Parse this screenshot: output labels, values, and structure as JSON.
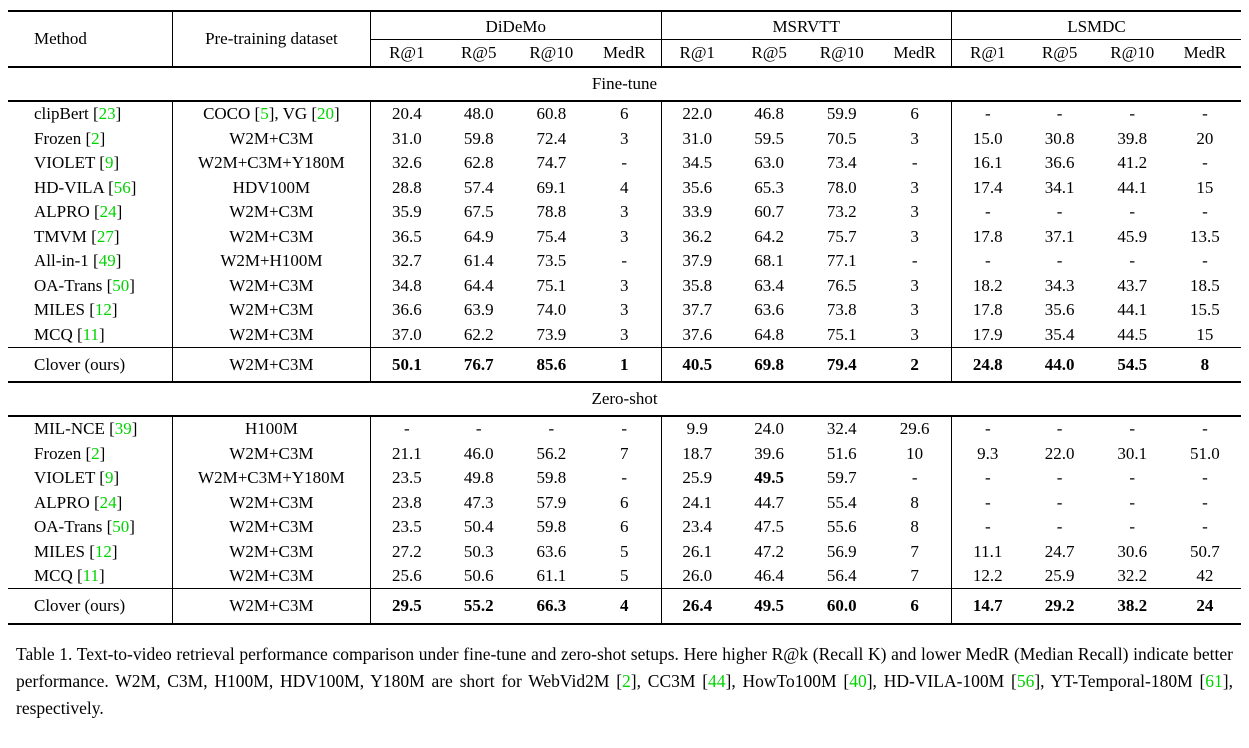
{
  "accent": {
    "citation_green": "#00d400",
    "text": "#000000",
    "background": "#ffffff"
  },
  "table": {
    "header": {
      "method": "Method",
      "pretraining": "Pre-training dataset",
      "groups": [
        {
          "label": "DiDeMo",
          "cols": [
            "R@1",
            "R@5",
            "R@10",
            "MedR"
          ]
        },
        {
          "label": "MSRVTT",
          "cols": [
            "R@1",
            "R@5",
            "R@10",
            "MedR"
          ]
        },
        {
          "label": "LSMDC",
          "cols": [
            "R@1",
            "R@5",
            "R@10",
            "MedR"
          ]
        }
      ]
    },
    "sections": [
      {
        "label": "Fine-tune",
        "rows": [
          {
            "method": [
              "clipBert [",
              {
                "g": "23"
              },
              "]"
            ],
            "dataset": [
              "COCO [",
              {
                "g": "5"
              },
              "], VG [",
              {
                "g": "20"
              },
              "]"
            ],
            "values": [
              "20.4",
              "48.0",
              "60.8",
              "6",
              "22.0",
              "46.8",
              "59.9",
              "6",
              "-",
              "-",
              "-",
              "-"
            ]
          },
          {
            "method": [
              "Frozen [",
              {
                "g": "2"
              },
              "]"
            ],
            "dataset": [
              "W2M+C3M"
            ],
            "values": [
              "31.0",
              "59.8",
              "72.4",
              "3",
              "31.0",
              "59.5",
              "70.5",
              "3",
              "15.0",
              "30.8",
              "39.8",
              "20"
            ]
          },
          {
            "method": [
              "VIOLET [",
              {
                "g": "9"
              },
              "]"
            ],
            "dataset": [
              "W2M+C3M+Y180M"
            ],
            "values": [
              "32.6",
              "62.8",
              "74.7",
              "-",
              "34.5",
              "63.0",
              "73.4",
              "-",
              "16.1",
              "36.6",
              "41.2",
              "-"
            ]
          },
          {
            "method": [
              "HD-VILA [",
              {
                "g": "56"
              },
              "]"
            ],
            "dataset": [
              "HDV100M"
            ],
            "values": [
              "28.8",
              "57.4",
              "69.1",
              "4",
              "35.6",
              "65.3",
              "78.0",
              "3",
              "17.4",
              "34.1",
              "44.1",
              "15"
            ]
          },
          {
            "method": [
              "ALPRO [",
              {
                "g": "24"
              },
              "]"
            ],
            "dataset": [
              "W2M+C3M"
            ],
            "values": [
              "35.9",
              "67.5",
              "78.8",
              "3",
              "33.9",
              "60.7",
              "73.2",
              "3",
              "-",
              "-",
              "-",
              "-"
            ]
          },
          {
            "method": [
              "TMVM [",
              {
                "g": "27"
              },
              "]"
            ],
            "dataset": [
              "W2M+C3M"
            ],
            "values": [
              "36.5",
              "64.9",
              "75.4",
              "3",
              "36.2",
              "64.2",
              "75.7",
              "3",
              "17.8",
              "37.1",
              "45.9",
              "13.5"
            ]
          },
          {
            "method": [
              "All-in-1 [",
              {
                "g": "49"
              },
              "]"
            ],
            "dataset": [
              "W2M+H100M"
            ],
            "values": [
              "32.7",
              "61.4",
              "73.5",
              "-",
              "37.9",
              "68.1",
              "77.1",
              "-",
              "-",
              "-",
              "-",
              "-"
            ]
          },
          {
            "method": [
              "OA-Trans [",
              {
                "g": "50"
              },
              "]"
            ],
            "dataset": [
              "W2M+C3M"
            ],
            "values": [
              "34.8",
              "64.4",
              "75.1",
              "3",
              "35.8",
              "63.4",
              "76.5",
              "3",
              "18.2",
              "34.3",
              "43.7",
              "18.5"
            ]
          },
          {
            "method": [
              "MILES [",
              {
                "g": "12"
              },
              "]"
            ],
            "dataset": [
              "W2M+C3M"
            ],
            "values": [
              "36.6",
              "63.9",
              "74.0",
              "3",
              "37.7",
              "63.6",
              "73.8",
              "3",
              "17.8",
              "35.6",
              "44.1",
              "15.5"
            ]
          },
          {
            "method": [
              "MCQ [",
              {
                "g": "11"
              },
              "]"
            ],
            "dataset": [
              "W2M+C3M"
            ],
            "values": [
              "37.0",
              "62.2",
              "73.9",
              "3",
              "37.6",
              "64.8",
              "75.1",
              "3",
              "17.9",
              "35.4",
              "44.5",
              "15"
            ]
          },
          {
            "method": [
              "Clover (ours)"
            ],
            "dataset": [
              "W2M+C3M"
            ],
            "values": [
              "50.1",
              "76.7",
              "85.6",
              "1",
              "40.5",
              "69.8",
              "79.4",
              "2",
              "24.8",
              "44.0",
              "54.5",
              "8"
            ],
            "highlight": true
          }
        ]
      },
      {
        "label": "Zero-shot",
        "rows": [
          {
            "method": [
              "MIL-NCE [",
              {
                "g": "39"
              },
              "]"
            ],
            "dataset": [
              "H100M"
            ],
            "values": [
              "-",
              "-",
              "-",
              "-",
              "9.9",
              "24.0",
              "32.4",
              "29.6",
              "-",
              "-",
              "-",
              "-"
            ]
          },
          {
            "method": [
              "Frozen [",
              {
                "g": "2"
              },
              "]"
            ],
            "dataset": [
              "W2M+C3M"
            ],
            "values": [
              "21.1",
              "46.0",
              "56.2",
              "7",
              "18.7",
              "39.6",
              "51.6",
              "10",
              "9.3",
              "22.0",
              "30.1",
              "51.0"
            ]
          },
          {
            "method": [
              "VIOLET [",
              {
                "g": "9"
              },
              "]"
            ],
            "dataset": [
              "W2M+C3M+Y180M"
            ],
            "values": [
              "23.5",
              "49.8",
              "59.8",
              "-",
              "25.9",
              "49.5",
              "59.7",
              "-",
              "-",
              "-",
              "-",
              "-"
            ],
            "bold_cells": [
              5
            ]
          },
          {
            "method": [
              "ALPRO [",
              {
                "g": "24"
              },
              "]"
            ],
            "dataset": [
              "W2M+C3M"
            ],
            "values": [
              "23.8",
              "47.3",
              "57.9",
              "6",
              "24.1",
              "44.7",
              "55.4",
              "8",
              "-",
              "-",
              "-",
              "-"
            ]
          },
          {
            "method": [
              "OA-Trans [",
              {
                "g": "50"
              },
              "]"
            ],
            "dataset": [
              "W2M+C3M"
            ],
            "values": [
              "23.5",
              "50.4",
              "59.8",
              "6",
              "23.4",
              "47.5",
              "55.6",
              "8",
              "-",
              "-",
              "-",
              "-"
            ]
          },
          {
            "method": [
              "MILES [",
              {
                "g": "12"
              },
              "]"
            ],
            "dataset": [
              "W2M+C3M"
            ],
            "values": [
              "27.2",
              "50.3",
              "63.6",
              "5",
              "26.1",
              "47.2",
              "56.9",
              "7",
              "11.1",
              "24.7",
              "30.6",
              "50.7"
            ]
          },
          {
            "method": [
              "MCQ [",
              {
                "g": "11"
              },
              "]"
            ],
            "dataset": [
              "W2M+C3M"
            ],
            "values": [
              "25.6",
              "50.6",
              "61.1",
              "5",
              "26.0",
              "46.4",
              "56.4",
              "7",
              "12.2",
              "25.9",
              "32.2",
              "42"
            ]
          },
          {
            "method": [
              "Clover (ours)"
            ],
            "dataset": [
              "W2M+C3M"
            ],
            "values": [
              "29.5",
              "55.2",
              "66.3",
              "4",
              "26.4",
              "49.5",
              "60.0",
              "6",
              "14.7",
              "29.2",
              "38.2",
              "24"
            ],
            "highlight": true
          }
        ]
      }
    ]
  },
  "caption": {
    "segments": [
      "Table 1.  Text-to-video retrieval performance comparison under fine-tune and zero-shot setups.  Here higher R@k (Recall K) and lower MedR (Median Recall) indicate better performance. W2M, C3M, H100M, HDV100M, Y180M are short for WebVid2M [",
      {
        "g": "2"
      },
      "], CC3M [",
      {
        "g": "44"
      },
      "], HowTo100M [",
      {
        "g": "40"
      },
      "], HD-VILA-100M [",
      {
        "g": "56"
      },
      "], YT-Temporal-180M [",
      {
        "g": "61"
      },
      "], respectively."
    ]
  }
}
